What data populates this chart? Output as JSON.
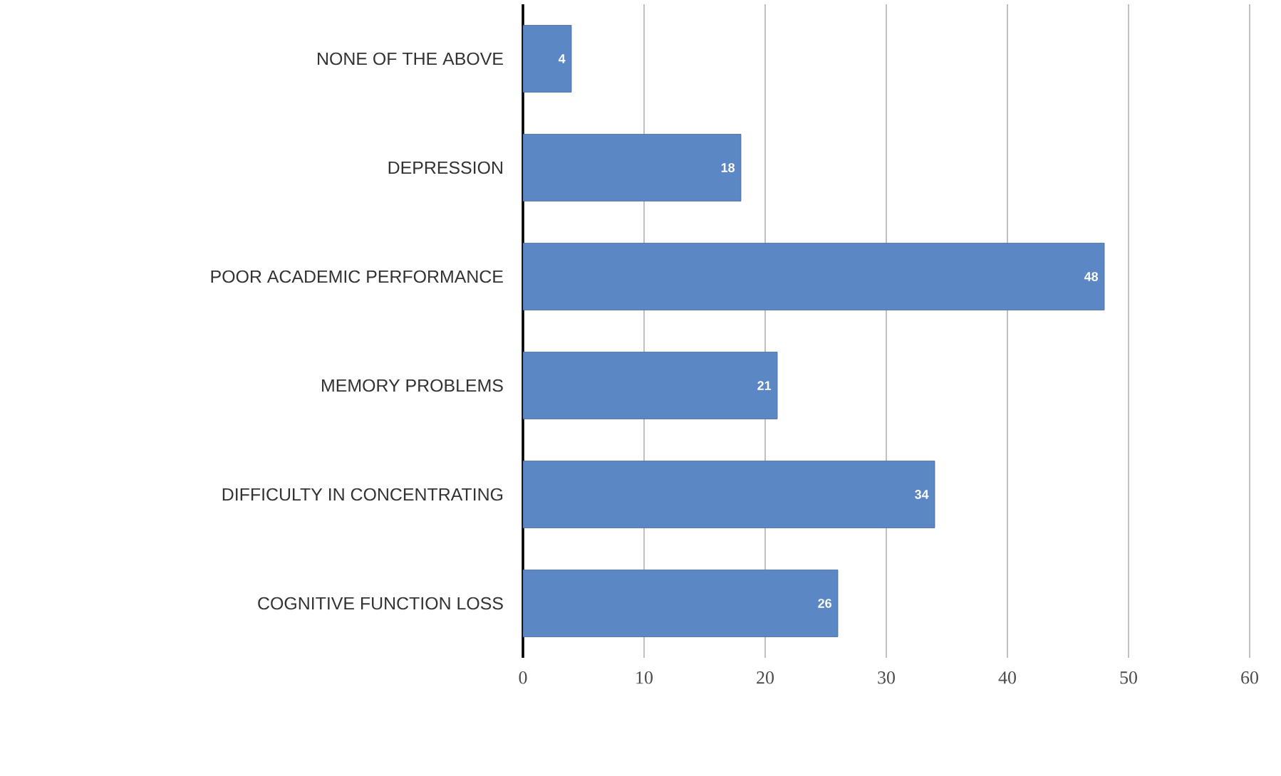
{
  "chart_data": {
    "type": "bar",
    "orientation": "horizontal",
    "categories": [
      "NONE OF THE ABOVE",
      "DEPRESSION",
      "POOR ACADEMIC PERFORMANCE",
      "MEMORY PROBLEMS",
      "DIFFICULTY IN CONCENTRATING",
      "COGNITIVE FUNCTION LOSS"
    ],
    "values": [
      4,
      18,
      48,
      21,
      34,
      26
    ],
    "color": "#5b87c4",
    "xlim": [
      0,
      60
    ],
    "xticks": [
      0,
      10,
      20,
      30,
      40,
      50,
      60
    ],
    "grid": "x",
    "data_labels": true
  }
}
